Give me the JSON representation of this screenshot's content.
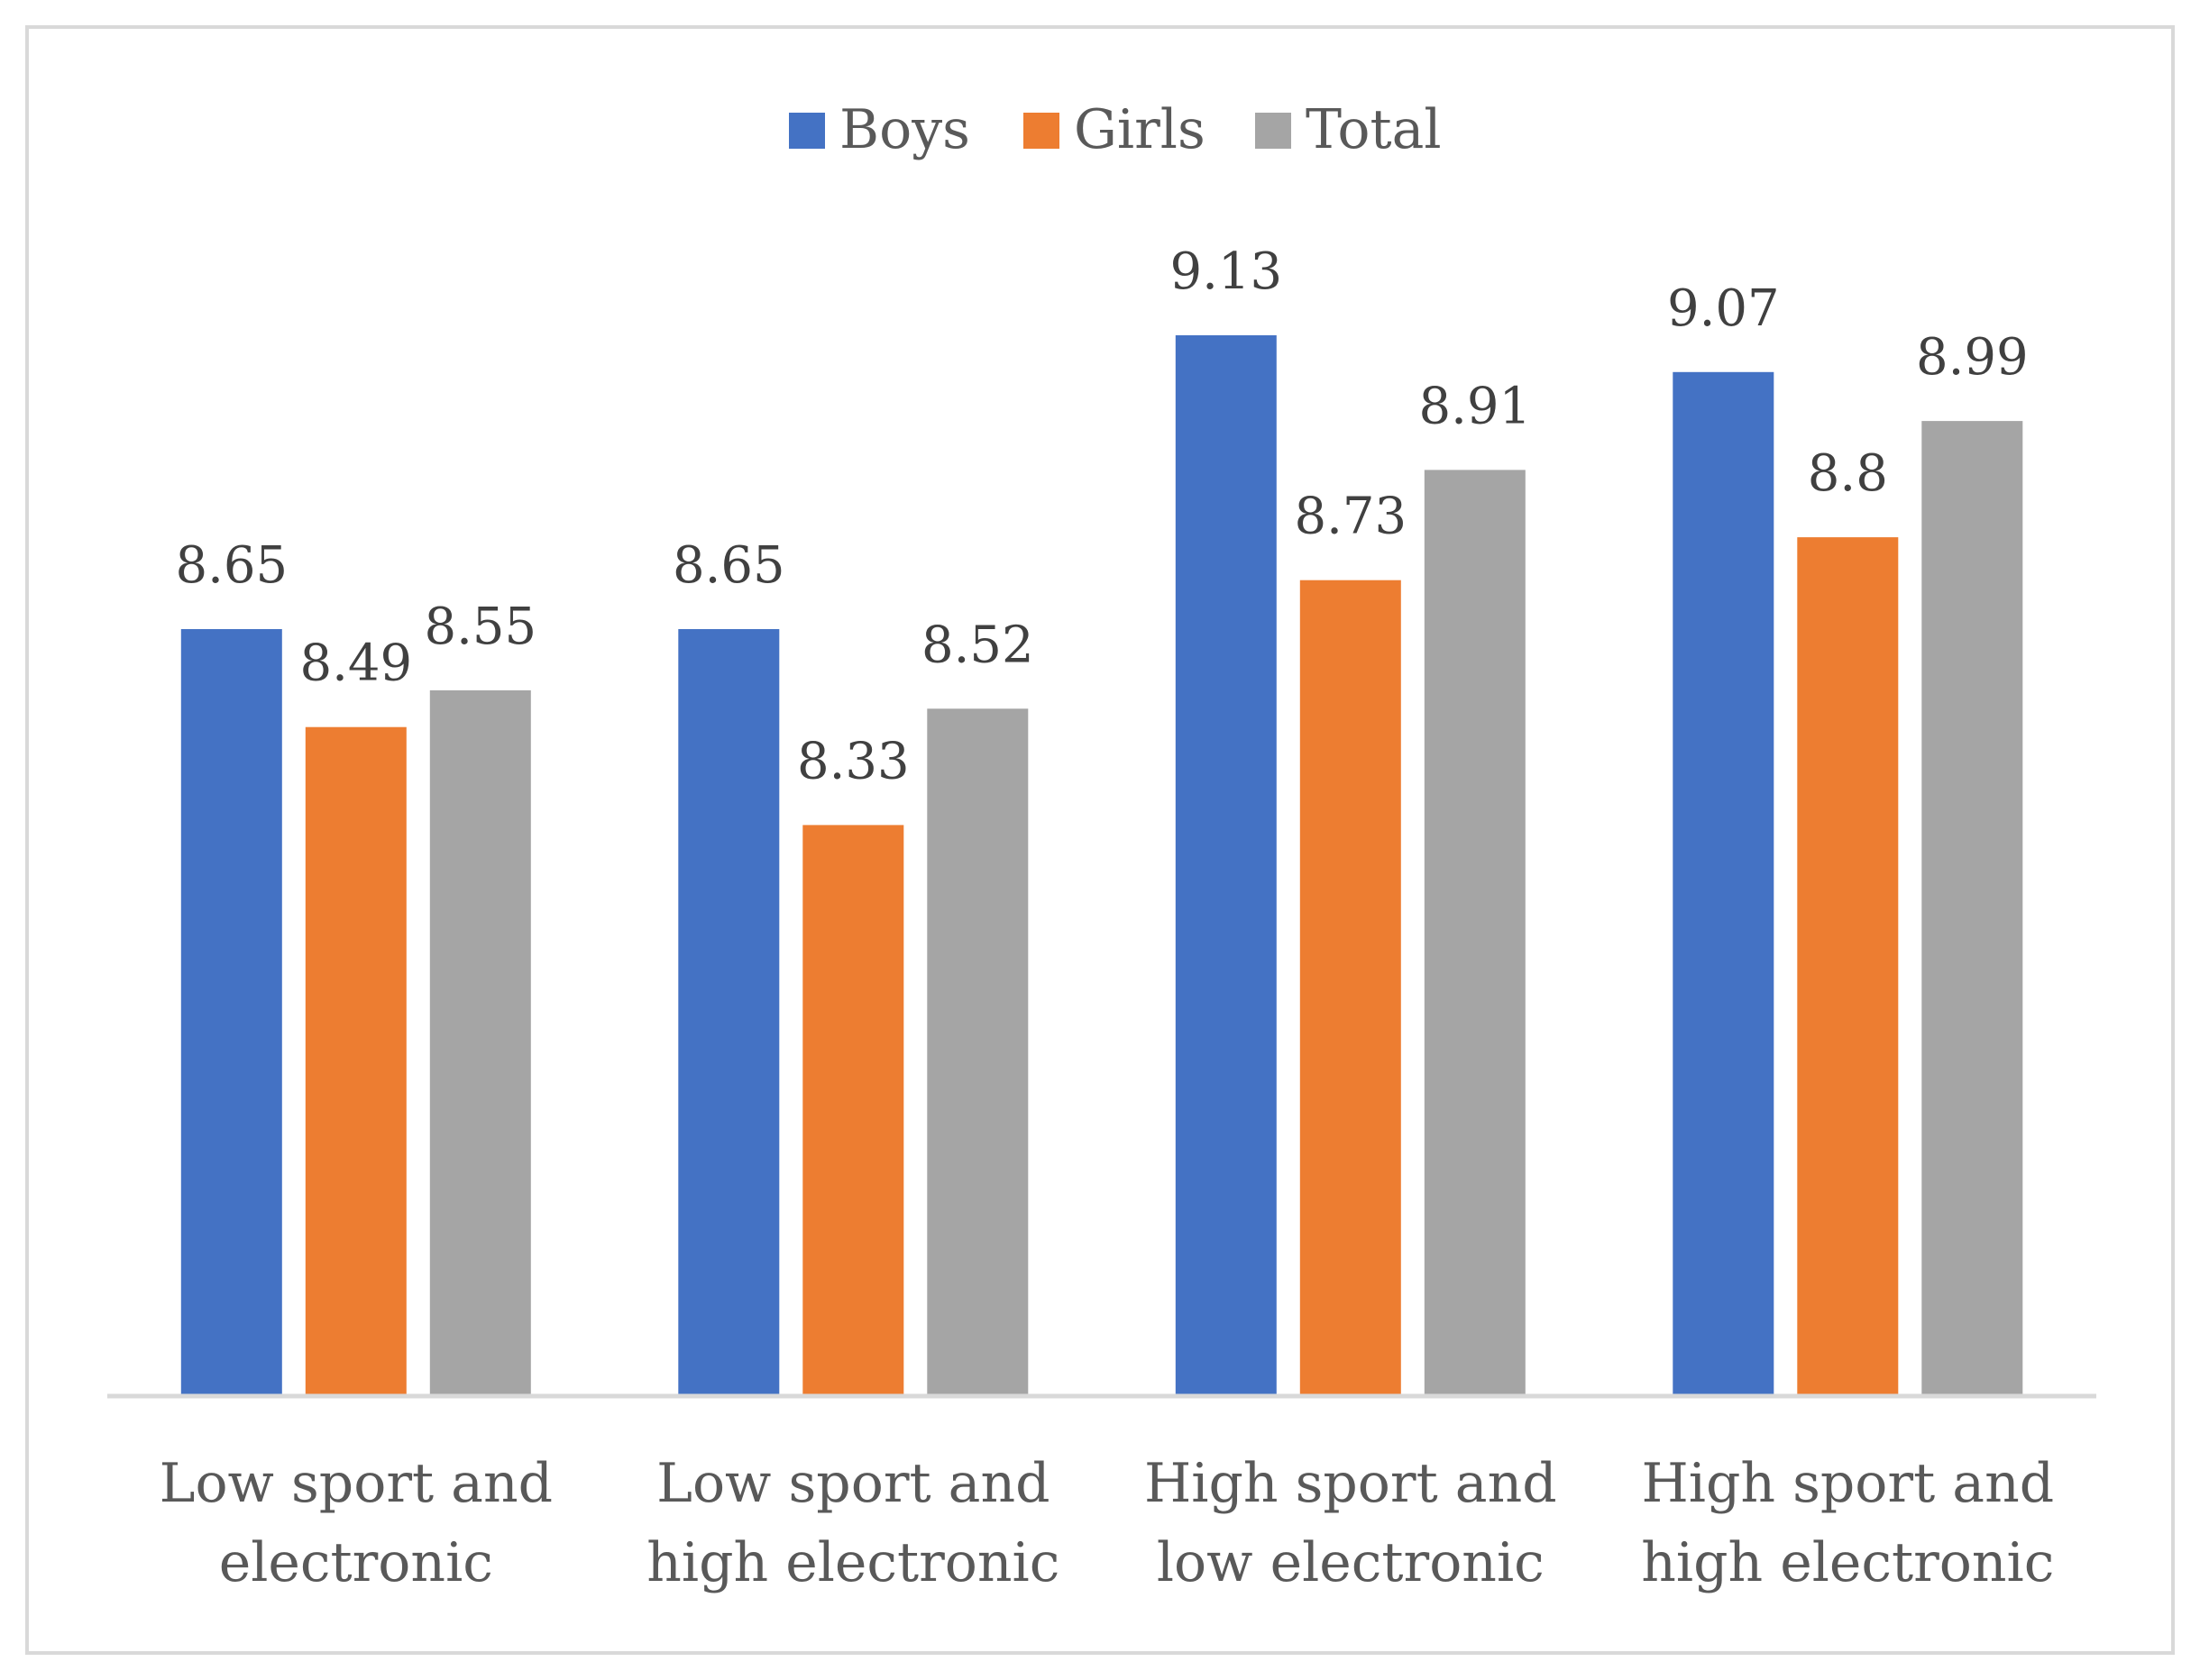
{
  "chart_data": {
    "type": "bar",
    "title": "",
    "xlabel": "",
    "ylabel": "",
    "ylim": [
      7.4,
      9.3
    ],
    "grid": false,
    "legend_position": "top-center",
    "categories": [
      [
        "Low sport and",
        "electronic"
      ],
      [
        "Low sport and",
        "high electronic"
      ],
      [
        "High sport and",
        "low electronic"
      ],
      [
        "High sport and",
        "high electronic"
      ]
    ],
    "series": [
      {
        "name": "Boys",
        "color": "#4472C4",
        "values": [
          8.65,
          8.65,
          9.13,
          9.07
        ],
        "labels": [
          "8.65",
          "8.65",
          "9.13",
          "9.07"
        ]
      },
      {
        "name": "Girls",
        "color": "#ED7D31",
        "values": [
          8.49,
          8.33,
          8.73,
          8.8
        ],
        "labels": [
          "8.49",
          "8.33",
          "8.73",
          "8.8"
        ]
      },
      {
        "name": "Total",
        "color": "#A5A5A5",
        "values": [
          8.55,
          8.52,
          8.91,
          8.99
        ],
        "labels": [
          "8.55",
          "8.52",
          "8.91",
          "8.99"
        ]
      }
    ]
  }
}
